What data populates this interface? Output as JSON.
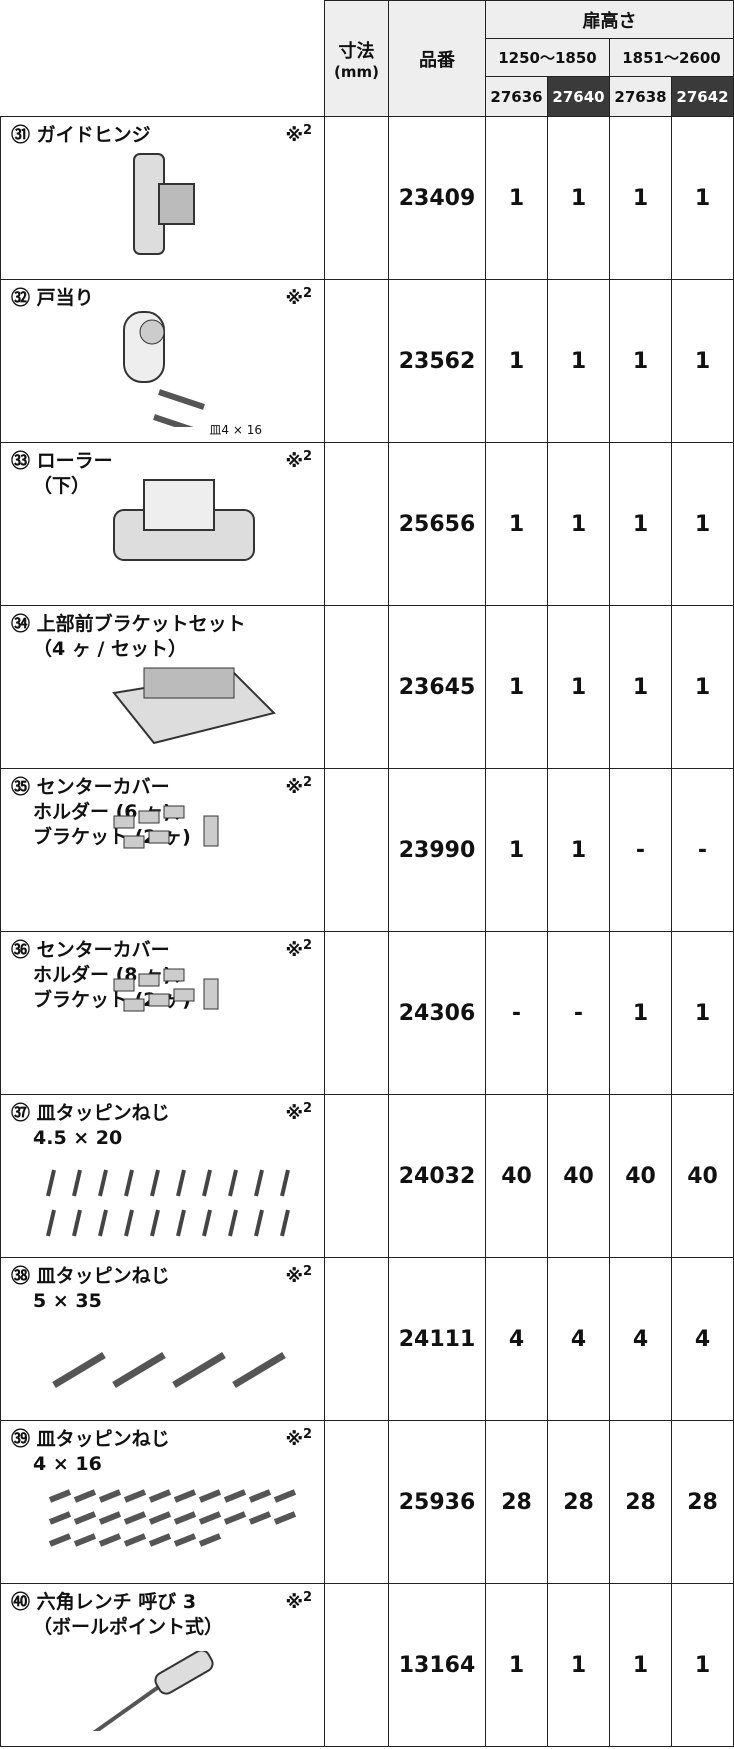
{
  "header": {
    "size": [
      "寸法",
      "(mm)"
    ],
    "part_no": "品番",
    "door_height": "扉高さ",
    "ranges": [
      "1250～1850",
      "1851～2600"
    ],
    "codes": [
      "27636",
      "27640",
      "27638",
      "27642"
    ]
  },
  "rows": [
    {
      "no": "㉛",
      "name": [
        "ガイドヒンジ"
      ],
      "note": {
        "mark": "※",
        "sup": "2"
      },
      "part_no": "23409",
      "qty": [
        1,
        1,
        1,
        1
      ]
    },
    {
      "no": "㉜",
      "name": [
        "戸当り"
      ],
      "note": {
        "mark": "※",
        "sup": "2"
      },
      "dim": "皿4 × 16",
      "part_no": "23562",
      "qty": [
        1,
        1,
        1,
        1
      ]
    },
    {
      "no": "㉝",
      "name": [
        "ローラー",
        "（下）"
      ],
      "note": {
        "mark": "※",
        "sup": "2"
      },
      "part_no": "25656",
      "qty": [
        1,
        1,
        1,
        1
      ]
    },
    {
      "no": "㉞",
      "name": [
        "上部前ブラケットセット",
        "（4 ヶ / セット）"
      ],
      "part_no": "23645",
      "qty": [
        1,
        1,
        1,
        1
      ]
    },
    {
      "no": "㉟",
      "name": [
        "センターカバー",
        "ホルダー (6 ヶ)、",
        "ブラケット (2 ヶ)"
      ],
      "note": {
        "mark": "※",
        "sup": "2"
      },
      "part_no": "23990",
      "qty": [
        1,
        1,
        "-",
        "-"
      ]
    },
    {
      "no": "㊱",
      "name": [
        "センターカバー",
        "ホルダー (8 ヶ)、",
        "ブラケット (2 ヶ)"
      ],
      "note": {
        "mark": "※",
        "sup": "2"
      },
      "part_no": "24306",
      "qty": [
        "-",
        "-",
        1,
        1
      ]
    },
    {
      "no": "㊲",
      "name": [
        "皿タッピンねじ",
        "4.5 × 20"
      ],
      "note": {
        "mark": "※",
        "sup": "2"
      },
      "part_no": "24032",
      "qty": [
        40,
        40,
        40,
        40
      ]
    },
    {
      "no": "㊳",
      "name": [
        "皿タッピンねじ",
        "5 × 35"
      ],
      "note": {
        "mark": "※",
        "sup": "2"
      },
      "part_no": "24111",
      "qty": [
        4,
        4,
        4,
        4
      ]
    },
    {
      "no": "㊴",
      "name": [
        "皿タッピンねじ",
        "4 × 16"
      ],
      "note": {
        "mark": "※",
        "sup": "2"
      },
      "part_no": "25936",
      "qty": [
        28,
        28,
        28,
        28
      ]
    },
    {
      "no": "㊵",
      "name": [
        "六角レンチ 呼び 3",
        "（ボールポイント式）"
      ],
      "note": {
        "mark": "※",
        "sup": "2"
      },
      "part_no": "13164",
      "qty": [
        1,
        1,
        1,
        1
      ]
    }
  ]
}
